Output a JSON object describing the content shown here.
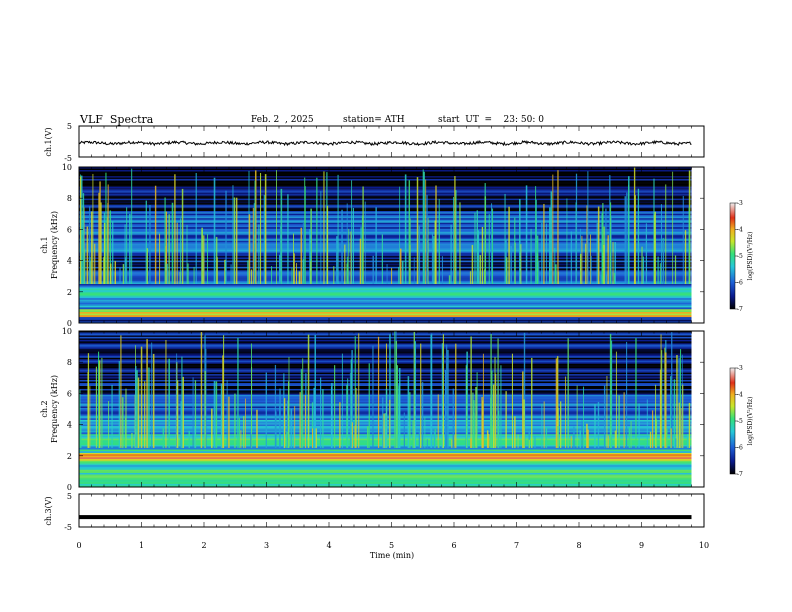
{
  "header": {
    "title": "VLF  Spectra",
    "date": "Feb. 2  , 2025",
    "station": "station= ATH",
    "start": "start  UT  =    23: 50: 0"
  },
  "chart_data": [
    {
      "type": "line",
      "name": "ch1-waveform",
      "ylabel": "ch.1(V)",
      "ylim": [
        -5,
        5
      ],
      "yticks": [
        "5",
        "-5"
      ],
      "xlim": [
        0,
        10
      ],
      "level_v": -0.5,
      "end_x": 9.8
    },
    {
      "type": "heatmap",
      "name": "ch1-spectrogram",
      "ylabel_lines": [
        "ch.1",
        "Frequency  (kHz)"
      ],
      "ylim": [
        0,
        10
      ],
      "yticks": [
        "0",
        "2",
        "4",
        "6",
        "8",
        "10"
      ],
      "xlim": [
        0,
        10
      ],
      "data_end_x": 9.8,
      "bands": [
        {
          "freq_khz": [
            0.0,
            0.4
          ],
          "log_psd": -6.2
        },
        {
          "freq_khz": [
            0.4,
            0.9
          ],
          "log_psd": -4.3
        },
        {
          "freq_khz": [
            0.9,
            1.6
          ],
          "log_psd": -5.6
        },
        {
          "freq_khz": [
            1.6,
            2.3
          ],
          "log_psd": -5.1
        },
        {
          "freq_khz": [
            2.3,
            3.4
          ],
          "log_psd": -6.0
        },
        {
          "freq_khz": [
            3.4,
            4.6
          ],
          "log_psd": -6.4
        },
        {
          "freq_khz": [
            4.6,
            7.2
          ],
          "log_psd": -6.0
        },
        {
          "freq_khz": [
            7.2,
            10.0
          ],
          "log_psd": -6.6
        }
      ],
      "colorbar": {
        "label": "log(PSD)(V²/Hz)",
        "range": [
          -7,
          -3
        ],
        "ticks": [
          "-3",
          "-4",
          "-5",
          "-6",
          "-7"
        ]
      }
    },
    {
      "type": "heatmap",
      "name": "ch2-spectrogram",
      "ylabel_lines": [
        "ch.2",
        "Frequency  (kHz)"
      ],
      "ylim": [
        0,
        10
      ],
      "yticks": [
        "0",
        "2",
        "4",
        "6",
        "8",
        "10"
      ],
      "xlim": [
        0,
        10
      ],
      "data_end_x": 9.8,
      "bands": [
        {
          "freq_khz": [
            0.0,
            0.5
          ],
          "log_psd": -5.0
        },
        {
          "freq_khz": [
            0.5,
            1.7
          ],
          "log_psd": -5.2
        },
        {
          "freq_khz": [
            1.7,
            2.2
          ],
          "log_psd": -3.8
        },
        {
          "freq_khz": [
            2.2,
            3.4
          ],
          "log_psd": -5.3
        },
        {
          "freq_khz": [
            3.4,
            4.6
          ],
          "log_psd": -5.6
        },
        {
          "freq_khz": [
            4.6,
            6.0
          ],
          "log_psd": -6.0
        },
        {
          "freq_khz": [
            6.0,
            10.0
          ],
          "log_psd": -6.6
        }
      ],
      "colorbar": {
        "label": "log(PSD)(V²/Hz)",
        "range": [
          -7,
          -3
        ],
        "ticks": [
          "-3",
          "-4",
          "-5",
          "-6",
          "-7"
        ]
      }
    },
    {
      "type": "line",
      "name": "ch3-waveform",
      "ylabel": "ch.3(V)",
      "ylim": [
        -5,
        5
      ],
      "yticks": [
        "5",
        "-5"
      ],
      "xlim": [
        0,
        10
      ],
      "level_v": -2.0,
      "end_x": 9.8
    }
  ],
  "x_axis": {
    "label": "Time  (min)",
    "ticks": [
      "0",
      "1",
      "2",
      "3",
      "4",
      "5",
      "6",
      "7",
      "8",
      "9",
      "10"
    ]
  },
  "colors": {
    "frame": "#000000",
    "colormap": [
      "#000000",
      "#0a1a8c",
      "#1e5fd6",
      "#27c8d8",
      "#34e07a",
      "#c8e62a",
      "#f0b020",
      "#e03018",
      "#f0f0f0"
    ]
  }
}
